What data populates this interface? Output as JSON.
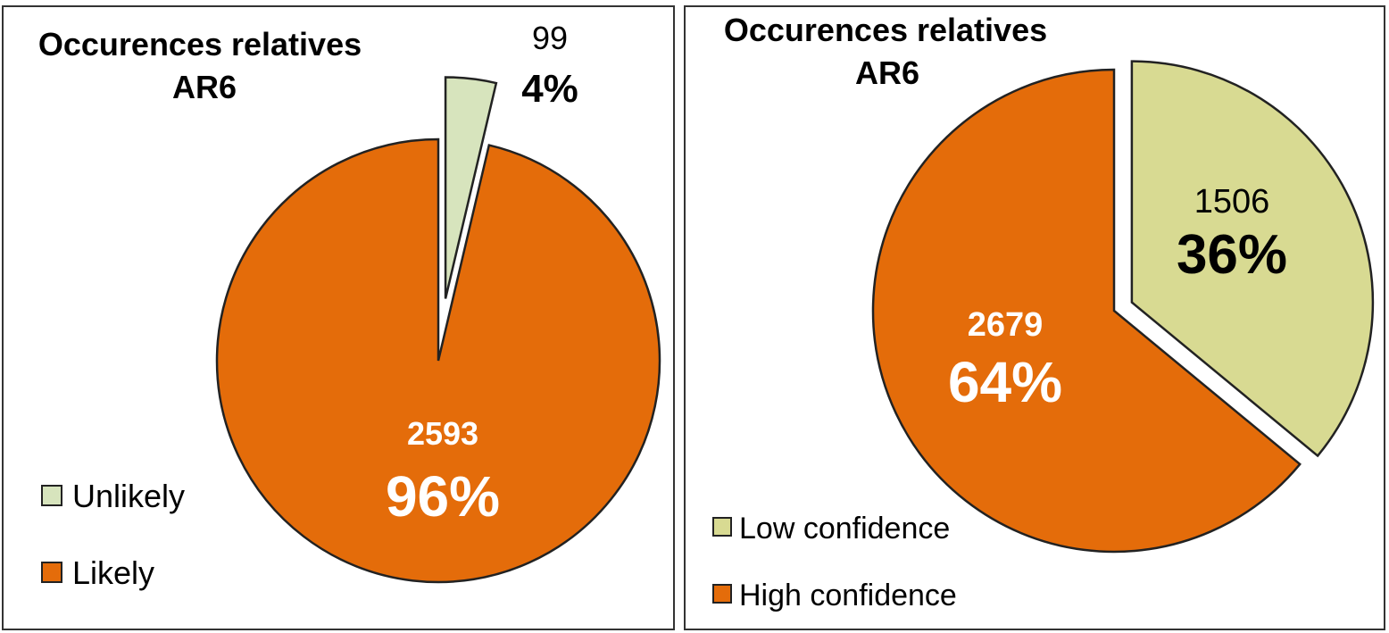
{
  "chart_data": [
    {
      "type": "pie",
      "title_lines": [
        "Occurences relatives",
        "AR6"
      ],
      "slices": [
        {
          "label": "Unlikely",
          "count": "99",
          "percent": "4%",
          "value": 99,
          "color": "#d7e4bd",
          "exploded": true
        },
        {
          "label": "Likely",
          "count": "2593",
          "percent": "96%",
          "value": 2593,
          "color": "#e46c0a",
          "exploded": false
        }
      ],
      "legend": {
        "position": "bottom-left",
        "items": [
          "Unlikely",
          "Likely"
        ]
      }
    },
    {
      "type": "pie",
      "title_lines": [
        "Occurences relatives",
        "AR6"
      ],
      "slices": [
        {
          "label": "Low confidence",
          "count": "1506",
          "percent": "36%",
          "value": 1506,
          "color": "#d8da92",
          "exploded": true
        },
        {
          "label": "High confidence",
          "count": "2679",
          "percent": "64%",
          "value": 2679,
          "color": "#e46c0a",
          "exploded": false
        }
      ],
      "legend": {
        "position": "bottom-left",
        "items": [
          "Low confidence",
          "High confidence"
        ]
      }
    }
  ]
}
